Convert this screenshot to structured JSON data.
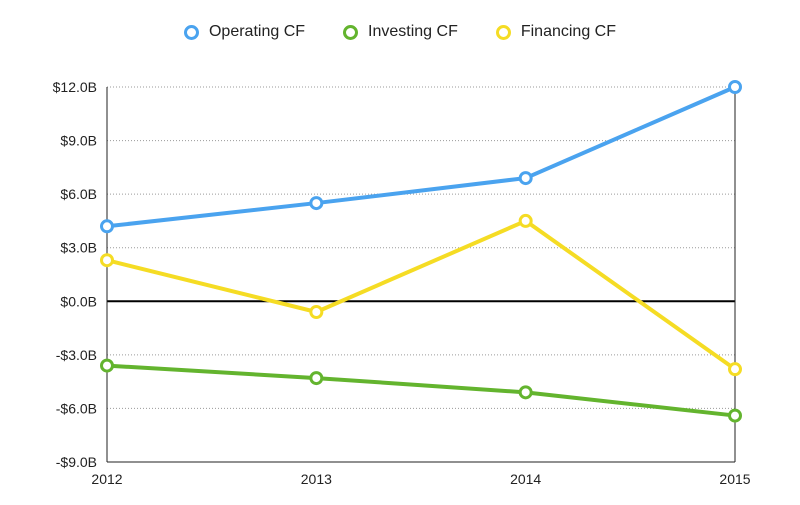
{
  "chart_data": {
    "type": "line",
    "categories": [
      "2012",
      "2013",
      "2014",
      "2015"
    ],
    "series": [
      {
        "name": "Operating CF",
        "color": "#4aa3ef",
        "values": [
          4.2,
          5.5,
          6.9,
          12.0
        ]
      },
      {
        "name": "Investing CF",
        "color": "#63b42e",
        "values": [
          -3.6,
          -4.3,
          -5.1,
          -6.4
        ]
      },
      {
        "name": "Financing CF",
        "color": "#f5dc24",
        "values": [
          2.3,
          -0.6,
          4.5,
          -3.8
        ]
      }
    ],
    "ylim": [
      -9,
      12
    ],
    "yticks": [
      12,
      9,
      6,
      3,
      0,
      -3,
      -6,
      -9
    ],
    "ytick_labels": [
      "$12.0B",
      "$9.0B",
      "$6.0B",
      "$3.0B",
      "$0.0B",
      "-$3.0B",
      "-$6.0B",
      "-$9.0B"
    ],
    "xlabel": "",
    "ylabel": "",
    "title": "",
    "grid": true,
    "legend_position": "top-center"
  }
}
